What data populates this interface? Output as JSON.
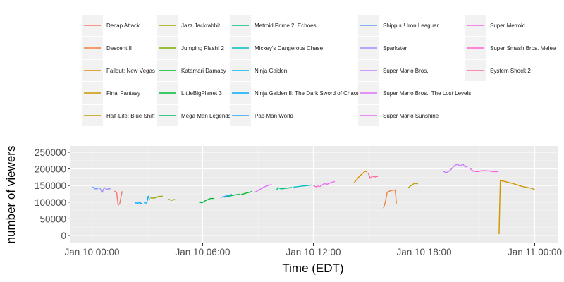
{
  "chart_data": {
    "type": "line",
    "title": "",
    "xlabel": "Time (EDT)",
    "ylabel": "number of viewers",
    "x_ticks": [
      "Jan 10 00:00",
      "Jan 10 06:00",
      "Jan 10 12:00",
      "Jan 10 18:00",
      "Jan 11 00:00"
    ],
    "y_ticks": [
      "0",
      "50000",
      "100000",
      "150000",
      "200000",
      "250000"
    ],
    "xlim": [
      "Jan 9 23:00",
      "Jan 11 01:00"
    ],
    "ylim": [
      0,
      250000
    ],
    "grid": true,
    "legend_position": "top",
    "series": [
      {
        "name": "Decap Attack",
        "color": "#F8766D",
        "points": [
          [
            "Jan 10 01:13",
            133000
          ],
          [
            "Jan 10 01:20",
            130000
          ],
          [
            "Jan 10 01:25",
            91000
          ],
          [
            "Jan 10 01:30",
            96000
          ],
          [
            "Jan 10 01:38",
            133000
          ]
        ]
      },
      {
        "name": "Descent II",
        "color": "#ED813E",
        "points": [
          [
            "Jan 10 15:48",
            82000
          ],
          [
            "Jan 10 15:54",
            100000
          ],
          [
            "Jan 10 16:00",
            130000
          ],
          [
            "Jan 10 16:12",
            135000
          ],
          [
            "Jan 10 16:26",
            137000
          ],
          [
            "Jan 10 16:30",
            96000
          ]
        ]
      },
      {
        "name": "Fallout: New Vegas",
        "color": "#DE8C00",
        "points": [
          [
            "Jan 10 14:12",
            158000
          ],
          [
            "Jan 10 14:30",
            178000
          ],
          [
            "Jan 10 14:48",
            193000
          ],
          [
            "Jan 10 14:55",
            191000
          ]
        ]
      },
      {
        "name": "Final Fantasy",
        "color": "#CD9600",
        "points": [
          [
            "Jan 10 22:04",
            4000
          ],
          [
            "Jan 10 22:08",
            165000
          ],
          [
            "Jan 10 22:20",
            163000
          ],
          [
            "Jan 10 22:50",
            156000
          ],
          [
            "Jan 10 23:20",
            147000
          ],
          [
            "Jan 10 23:48",
            142000
          ],
          [
            "Jan 11 00:00",
            138000
          ]
        ]
      },
      {
        "name": "Half-Life: Blue Shift",
        "color": "#B79F00",
        "points": [
          [
            "Jan 10 17:09",
            144000
          ],
          [
            "Jan 10 17:20",
            152000
          ],
          [
            "Jan 10 17:30",
            157000
          ],
          [
            "Jan 10 17:40",
            155000
          ]
        ]
      },
      {
        "name": "Jazz Jackrabbit",
        "color": "#9EA700",
        "points": [
          [
            "Jan 10 03:10",
            113000
          ],
          [
            "Jan 10 03:22",
            112000
          ],
          [
            "Jan 10 03:35",
            117000
          ],
          [
            "Jan 10 03:50",
            118000
          ]
        ]
      },
      {
        "name": "Jumping Flash! 2",
        "color": "#7CAE00",
        "points": [
          [
            "Jan 10 04:07",
            109000
          ],
          [
            "Jan 10 04:18",
            106000
          ],
          [
            "Jan 10 04:30",
            108000
          ]
        ]
      },
      {
        "name": "Katamari Damacy",
        "color": "#00B81F",
        "points": [
          [
            "Jan 10 08:05",
            123000
          ],
          [
            "Jan 10 08:20",
            127000
          ],
          [
            "Jan 10 08:40",
            132000
          ]
        ]
      },
      {
        "name": "LittleBigPlanet 3",
        "color": "#00BA38",
        "points": [
          [
            "Jan 10 05:48",
            100000
          ],
          [
            "Jan 10 05:58",
            98000
          ],
          [
            "Jan 10 06:10",
            105000
          ],
          [
            "Jan 10 06:25",
            111000
          ],
          [
            "Jan 10 06:38",
            111000
          ]
        ]
      },
      {
        "name": "Mega Man Legends",
        "color": "#00BD5C",
        "points": [
          [
            "Jan 10 07:10",
            115000
          ],
          [
            "Jan 10 07:20",
            117000
          ],
          [
            "Jan 10 07:40",
            121000
          ],
          [
            "Jan 10 08:00",
            124000
          ]
        ]
      },
      {
        "name": "Metroid Prime 2: Echoes",
        "color": "#00C08B",
        "points": [
          [
            "Jan 10 10:00",
            136000
          ],
          [
            "Jan 10 10:05",
            144000
          ],
          [
            "Jan 10 10:15",
            140000
          ],
          [
            "Jan 10 10:30",
            142000
          ],
          [
            "Jan 10 10:50",
            144000
          ]
        ]
      },
      {
        "name": "Mickey's Dangerous Chase",
        "color": "#00BFC4",
        "points": [
          [
            "Jan 10 10:55",
            145000
          ],
          [
            "Jan 10 11:20",
            148000
          ],
          [
            "Jan 10 11:40",
            150000
          ],
          [
            "Jan 10 11:55",
            152000
          ]
        ]
      },
      {
        "name": "Ninja Gaiden",
        "color": "#00B4F0",
        "points": [
          [
            "Jan 10 02:49",
            98000
          ],
          [
            "Jan 10 02:58",
            97000
          ],
          [
            "Jan 10 03:03",
            118000
          ],
          [
            "Jan 10 03:07",
            109000
          ]
        ]
      },
      {
        "name": "Ninja Gaiden II: The Dark Sword of Chaos",
        "color": "#00A9FF",
        "points": [
          [
            "Jan 10 02:20",
            98000
          ],
          [
            "Jan 10 02:30",
            97000
          ],
          [
            "Jan 10 02:36",
            99000
          ],
          [
            "Jan 10 02:40",
            96000
          ],
          [
            "Jan 10 02:44",
            97000
          ]
        ]
      },
      {
        "name": "Pac-Man World",
        "color": "#35A2FF",
        "points": [
          [
            "Jan 10 06:58",
            114000
          ],
          [
            "Jan 10 07:10",
            117000
          ],
          [
            "Jan 10 07:25",
            121000
          ],
          [
            "Jan 10 07:35",
            124000
          ]
        ]
      },
      {
        "name": "Shippuu! Iron Leaguer",
        "color": "#619CFF",
        "points": [
          [
            "Jan 10 00:02",
            146000
          ],
          [
            "Jan 10 00:10",
            140000
          ],
          [
            "Jan 10 00:20",
            141000
          ]
        ]
      },
      {
        "name": "Sparkster",
        "color": "#9F8CFF",
        "points": [
          [
            "Jan 10 00:25",
            144000
          ],
          [
            "Jan 10 00:33",
            129000
          ],
          [
            "Jan 10 00:40",
            144000
          ],
          [
            "Jan 10 00:48",
            138000
          ],
          [
            "Jan 10 00:55",
            141000
          ],
          [
            "Jan 10 01:00",
            140000
          ]
        ]
      },
      {
        "name": "Super Mario Bros.",
        "color": "#C77CFF",
        "points": [
          [
            "Jan 10 19:00",
            195000
          ],
          [
            "Jan 10 19:12",
            188000
          ],
          [
            "Jan 10 19:25",
            196000
          ],
          [
            "Jan 10 19:38",
            209000
          ],
          [
            "Jan 10 19:48",
            214000
          ],
          [
            "Jan 10 19:58",
            209000
          ],
          [
            "Jan 10 20:06",
            214000
          ],
          [
            "Jan 10 20:14",
            206000
          ],
          [
            "Jan 10 20:22",
            208000
          ]
        ]
      },
      {
        "name": "Super Mario Bros.: The Lost Levels",
        "color": "#DE71F9",
        "points": [
          [
            "Jan 10 08:50",
            130000
          ],
          [
            "Jan 10 09:05",
            138000
          ],
          [
            "Jan 10 09:20",
            146000
          ],
          [
            "Jan 10 09:35",
            151000
          ],
          [
            "Jan 10 09:45",
            153000
          ]
        ]
      },
      {
        "name": "Super Mario Sunshine",
        "color": "#E76BF3",
        "points": [
          [
            "Jan 10 12:20",
            146000
          ],
          [
            "Jan 10 12:35",
            156000
          ],
          [
            "Jan 10 12:45",
            154000
          ],
          [
            "Jan 10 13:00",
            160000
          ],
          [
            "Jan 10 13:10",
            162000
          ]
        ]
      },
      {
        "name": "Super Metroid",
        "color": "#F763E0",
        "points": [
          [
            "Jan 10 20:28",
            203000
          ],
          [
            "Jan 10 20:40",
            193000
          ],
          [
            "Jan 10 20:55",
            192000
          ],
          [
            "Jan 10 21:10",
            195000
          ],
          [
            "Jan 10 21:30",
            194000
          ],
          [
            "Jan 10 21:45",
            192000
          ],
          [
            "Jan 10 22:00",
            192000
          ]
        ]
      },
      {
        "name": "Super Smash Bros. Melee",
        "color": "#FF61C9",
        "points": [
          [
            "Jan 10 12:00",
            150000
          ],
          [
            "Jan 10 12:10",
            146000
          ],
          [
            "Jan 10 12:18",
            150000
          ]
        ]
      },
      {
        "name": "System Shock 2",
        "color": "#FF67A4",
        "points": [
          [
            "Jan 10 14:58",
            188000
          ],
          [
            "Jan 10 15:05",
            172000
          ],
          [
            "Jan 10 15:12",
            178000
          ],
          [
            "Jan 10 15:22",
            176000
          ],
          [
            "Jan 10 15:30",
            178000
          ]
        ]
      }
    ]
  }
}
